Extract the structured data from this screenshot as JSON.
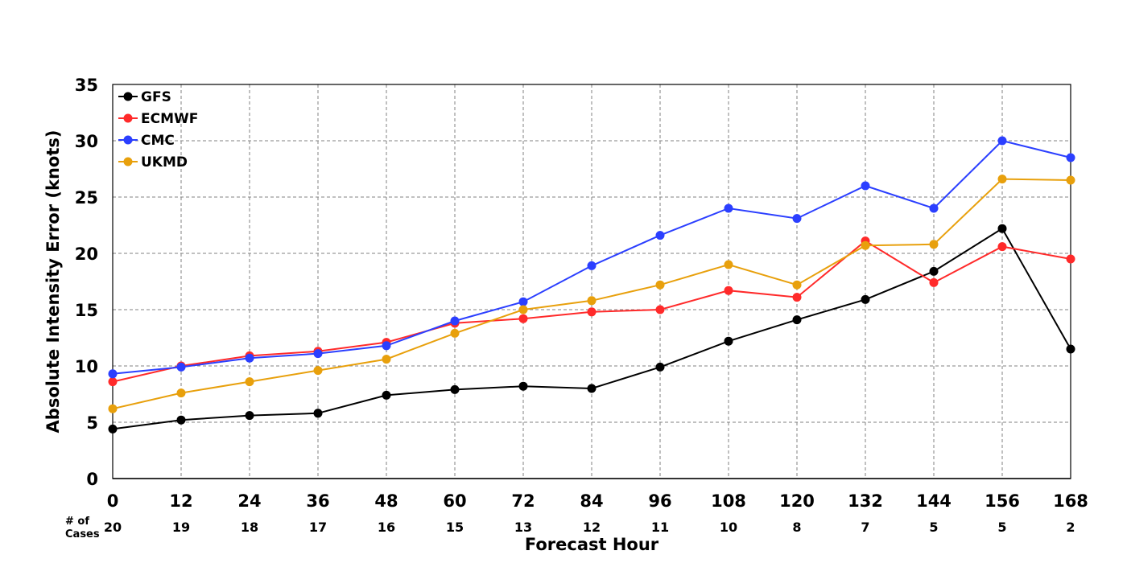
{
  "chart_data": {
    "type": "line",
    "title": "",
    "xlabel": "Forecast Hour",
    "ylabel": "Absolute Intensity Error (knots)",
    "x": [
      0,
      12,
      24,
      36,
      48,
      60,
      72,
      84,
      96,
      108,
      120,
      132,
      144,
      156,
      168
    ],
    "xlim": [
      0,
      168
    ],
    "ylim": [
      0,
      35
    ],
    "yticks": [
      0,
      5,
      10,
      15,
      20,
      25,
      30,
      35
    ],
    "grid": true,
    "legend_position": "top-left",
    "cases_label": "# of Cases",
    "cases_label_lines": [
      "# of",
      "Cases"
    ],
    "cases": [
      20,
      19,
      18,
      17,
      16,
      15,
      13,
      12,
      11,
      10,
      8,
      7,
      5,
      5,
      2
    ],
    "series": [
      {
        "name": "GFS",
        "color": "#000000",
        "values": [
          4.4,
          5.2,
          5.6,
          5.8,
          7.4,
          7.9,
          8.2,
          8.0,
          9.9,
          12.2,
          14.1,
          15.9,
          18.4,
          22.2,
          11.5
        ]
      },
      {
        "name": "ECMWF",
        "color": "#ff2a2a",
        "values": [
          8.6,
          10.0,
          10.9,
          11.3,
          12.1,
          13.8,
          14.2,
          14.8,
          15.0,
          16.7,
          16.1,
          21.1,
          17.4,
          20.6,
          19.5
        ]
      },
      {
        "name": "CMC",
        "color": "#2b3fff",
        "values": [
          9.3,
          9.9,
          10.7,
          11.1,
          11.8,
          14.0,
          15.7,
          18.9,
          21.6,
          24.0,
          23.1,
          26.0,
          24.0,
          30.0,
          28.5
        ]
      },
      {
        "name": "UKMD",
        "color": "#e8a00c",
        "values": [
          6.2,
          7.6,
          8.6,
          9.6,
          10.6,
          12.9,
          15.0,
          15.8,
          17.2,
          19.0,
          17.2,
          20.7,
          20.8,
          26.6,
          26.5
        ]
      }
    ]
  }
}
